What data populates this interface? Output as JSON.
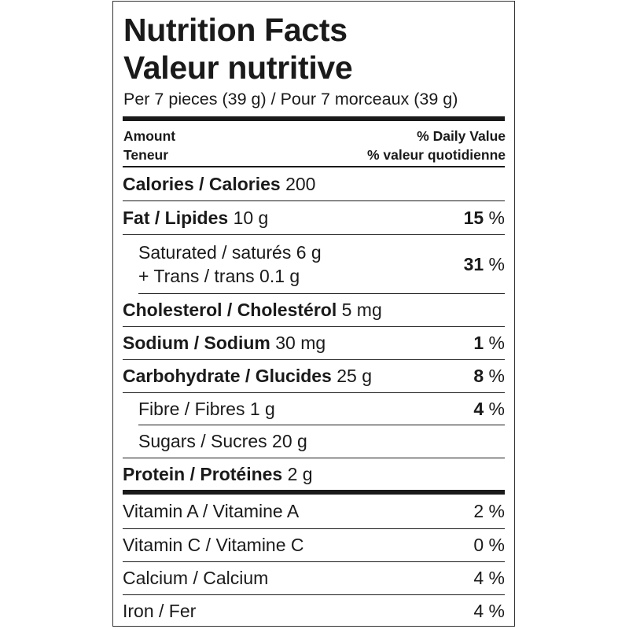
{
  "title_en": "Nutrition Facts",
  "title_fr": "Valeur nutritive",
  "serving": "Per 7 pieces (39 g) / Pour 7 morceaux (39 g)",
  "header": {
    "amount": "Amount",
    "teneur": "Teneur",
    "dv": "% Daily Value",
    "dv_fr": "% valeur quotidienne"
  },
  "rows": {
    "calories": {
      "label": "Calories / Calories",
      "amount": "200"
    },
    "fat": {
      "label": "Fat / Lipides",
      "amount": "10 g",
      "dv": "15",
      "unit": "%"
    },
    "saturated": {
      "label": "Saturated / saturés",
      "amount": "6 g",
      "label2": "+ Trans / trans",
      "amount2": "0.1 g",
      "dv": "31",
      "unit": "%"
    },
    "cholesterol": {
      "label": "Cholesterol / Cholestérol",
      "amount": "5 mg"
    },
    "sodium": {
      "label": "Sodium / Sodium",
      "amount": "30 mg",
      "dv": "1",
      "unit": "%"
    },
    "carbohydrate": {
      "label": "Carbohydrate / Glucides",
      "amount": "25 g",
      "dv": "8",
      "unit": "%"
    },
    "fibre": {
      "label": "Fibre / Fibres",
      "amount": "1 g",
      "dv": "4",
      "unit": "%"
    },
    "sugars": {
      "label": "Sugars / Sucres",
      "amount": "20 g"
    },
    "protein": {
      "label": "Protein / Protéines",
      "amount": "2 g"
    }
  },
  "vitamins": [
    {
      "label": "Vitamin A / Vitamine A",
      "dv": "2 %"
    },
    {
      "label": "Vitamin C / Vitamine C",
      "dv": "0 %"
    },
    {
      "label": "Calcium / Calcium",
      "dv": "4 %"
    },
    {
      "label": "Iron / Fer",
      "dv": "4 %"
    }
  ]
}
